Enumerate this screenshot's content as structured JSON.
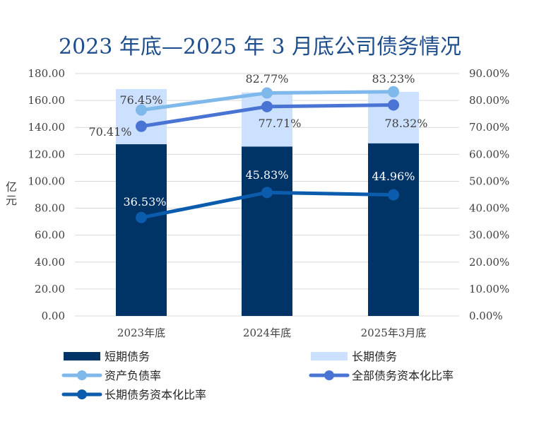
{
  "chart_data": {
    "type": "bar",
    "title": "2023 年底—2025 年 3 月底公司债务情况",
    "ylabel": "亿元",
    "categories": [
      "2023年底",
      "2024年底",
      "2025年3月底"
    ],
    "ylim": [
      0,
      180
    ],
    "y_ticks": [
      "0.00",
      "20.00",
      "40.00",
      "60.00",
      "80.00",
      "100.00",
      "120.00",
      "140.00",
      "160.00",
      "180.00"
    ],
    "y2lim": [
      0,
      90
    ],
    "y2_ticks": [
      "0.00%",
      "10.00%",
      "20.00%",
      "30.00%",
      "40.00%",
      "50.00%",
      "60.00%",
      "70.00%",
      "80.00%",
      "90.00%"
    ],
    "stacked_bars": [
      {
        "name": "短期债务",
        "values": [
          127.5,
          125.8,
          128.2
        ],
        "color": "#003366"
      },
      {
        "name": "长期债务",
        "values": [
          41.0,
          40.2,
          38.2
        ],
        "color": "#cce0ff"
      }
    ],
    "lines": [
      {
        "name": "资产负债率",
        "values": [
          76.45,
          82.77,
          83.23
        ],
        "labels": [
          "76.45%",
          "82.77%",
          "83.23%"
        ],
        "color": "#7fb8ea"
      },
      {
        "name": "全部债务资本化比率",
        "values": [
          70.41,
          77.71,
          78.32
        ],
        "labels": [
          "70.41%",
          "77.71%",
          "78.32%"
        ],
        "color": "#4a74d4"
      },
      {
        "name": "长期债务资本化比率",
        "values": [
          36.53,
          45.83,
          44.96
        ],
        "labels": [
          "36.53%",
          "45.83%",
          "44.96%"
        ],
        "color": "#0b5cad"
      }
    ],
    "grid": true,
    "legend_position": "bottom"
  }
}
